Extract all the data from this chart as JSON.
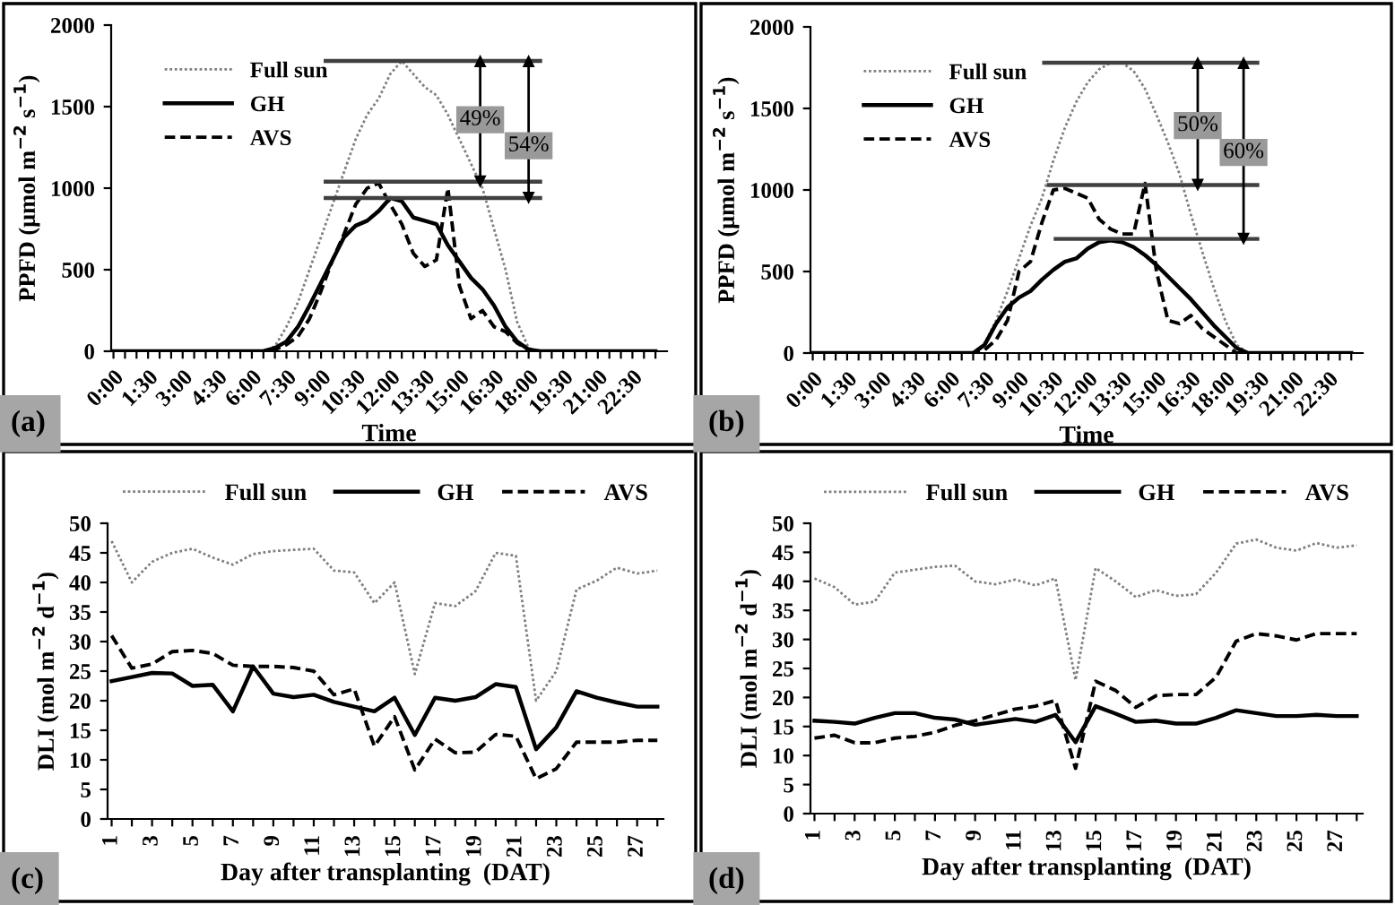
{
  "chart_data": [
    {
      "type": "line",
      "xlabel": "Time",
      "ylabel": "PPFD (μmol m$^{−2}$ s$^{−1}$)",
      "annotations": [
        "(a)",
        {
          "text": "49%",
          "x": 15.9,
          "y": 1420
        },
        {
          "text": "54%",
          "x": 18.0,
          "y": 1260
        }
      ],
      "xlim": [
        -0.1,
        24
      ],
      "ylim": [
        0,
        2000
      ],
      "yticks": [
        0,
        500,
        1000,
        1500,
        2000
      ],
      "xticks": [
        {
          "value": 0,
          "label": "0:00"
        },
        {
          "value": 0.5,
          "label": null
        },
        {
          "value": 1,
          "label": null
        },
        {
          "value": 1.5,
          "label": "1:30"
        },
        {
          "value": 2,
          "label": null
        },
        {
          "value": 2.5,
          "label": null
        },
        {
          "value": 3,
          "label": "3:00"
        },
        {
          "value": 3.5,
          "label": null
        },
        {
          "value": 4,
          "label": null
        },
        {
          "value": 4.5,
          "label": "4:30"
        },
        {
          "value": 5,
          "label": null
        },
        {
          "value": 5.5,
          "label": null
        },
        {
          "value": 6,
          "label": "6:00"
        },
        {
          "value": 6.5,
          "label": null
        },
        {
          "value": 7,
          "label": null
        },
        {
          "value": 7.5,
          "label": "7:30"
        },
        {
          "value": 8,
          "label": null
        },
        {
          "value": 8.5,
          "label": null
        },
        {
          "value": 9,
          "label": "9:00"
        },
        {
          "value": 9.5,
          "label": null
        },
        {
          "value": 10,
          "label": null
        },
        {
          "value": 10.5,
          "label": "10:30"
        },
        {
          "value": 11,
          "label": null
        },
        {
          "value": 11.5,
          "label": null
        },
        {
          "value": 12,
          "label": "12:00"
        },
        {
          "value": 12.5,
          "label": null
        },
        {
          "value": 13,
          "label": null
        },
        {
          "value": 13.5,
          "label": "13:30"
        },
        {
          "value": 14,
          "label": null
        },
        {
          "value": 14.5,
          "label": null
        },
        {
          "value": 15,
          "label": "15:00"
        },
        {
          "value": 15.5,
          "label": null
        },
        {
          "value": 16,
          "label": null
        },
        {
          "value": 16.5,
          "label": "16:30"
        },
        {
          "value": 17,
          "label": null
        },
        {
          "value": 17.5,
          "label": null
        },
        {
          "value": 18,
          "label": "18:00"
        },
        {
          "value": 18.5,
          "label": null
        },
        {
          "value": 19,
          "label": null
        },
        {
          "value": 19.5,
          "label": "19:30"
        },
        {
          "value": 20,
          "label": null
        },
        {
          "value": 20.5,
          "label": null
        },
        {
          "value": 21,
          "label": "21:00"
        },
        {
          "value": 21.5,
          "label": null
        },
        {
          "value": 22,
          "label": null
        },
        {
          "value": 22.5,
          "label": "22:30"
        },
        {
          "value": 23,
          "label": null
        },
        {
          "value": 23.5,
          "label": null
        }
      ],
      "legend": "top left",
      "series": [
        {
          "name": "Full sun",
          "color": "#7f7f7f",
          "line_style": "dotted",
          "x": [
            0,
            6.5,
            7,
            7.5,
            8,
            8.5,
            9,
            9.5,
            10,
            10.5,
            11,
            11.5,
            12,
            12.5,
            13,
            13.5,
            14,
            14.5,
            15,
            15.5,
            16,
            16.5,
            17,
            17.5,
            18,
            18.5,
            23.5
          ],
          "values": [
            0,
            0,
            30,
            150,
            300,
            500,
            700,
            900,
            1100,
            1300,
            1450,
            1550,
            1700,
            1780,
            1700,
            1620,
            1570,
            1450,
            1300,
            1150,
            1000,
            750,
            500,
            180,
            20,
            0,
            0
          ]
        },
        {
          "name": "GH",
          "color": "#000000",
          "line_style": "solid",
          "x": [
            0,
            6.5,
            7,
            7.5,
            8,
            8.5,
            9,
            9.5,
            10,
            10.5,
            11,
            11.5,
            12,
            12.5,
            13,
            13.5,
            14,
            14.5,
            15,
            15.5,
            16,
            16.5,
            17,
            17.5,
            18,
            18.5,
            23.5
          ],
          "values": [
            0,
            0,
            20,
            60,
            150,
            280,
            420,
            560,
            700,
            770,
            800,
            860,
            940,
            920,
            820,
            800,
            780,
            650,
            550,
            450,
            380,
            280,
            150,
            60,
            10,
            0,
            0
          ]
        },
        {
          "name": "AVS",
          "color": "#000000",
          "line_style": "dashed",
          "x": [
            0,
            6.5,
            7,
            7.5,
            8,
            8.5,
            9,
            9.5,
            10,
            10.5,
            11,
            11.5,
            12,
            12.5,
            13,
            13.5,
            14,
            14.5,
            15,
            15.5,
            16,
            16.5,
            17,
            17.5,
            18,
            18.5,
            23.5
          ],
          "values": [
            0,
            0,
            10,
            40,
            90,
            200,
            370,
            560,
            720,
            900,
            1000,
            1030,
            900,
            780,
            600,
            520,
            560,
            1000,
            400,
            200,
            250,
            150,
            120,
            50,
            10,
            0,
            0
          ]
        },
        {
          "color": "#404040",
          "line_style": "solid",
          "x": [
            9.2,
            18.5
          ],
          "values": [
            1780,
            1780
          ]
        },
        {
          "color": "#404040",
          "line_style": "solid",
          "x": [
            9.2,
            18.5
          ],
          "values": [
            1040,
            1040
          ]
        },
        {
          "color": "#404040",
          "line_style": "solid",
          "x": [
            9.2,
            18.5
          ],
          "values": [
            940,
            940
          ]
        },
        {
          "color": "#000000",
          "line_style": "solid",
          "marker": "triangle",
          "x": [
            15.9,
            15.9
          ],
          "values": [
            1780,
            1040
          ]
        },
        {
          "color": "#000000",
          "line_style": "solid",
          "marker": "triangle",
          "x": [
            18.0,
            18.0
          ],
          "values": [
            1780,
            940
          ]
        }
      ]
    },
    {
      "type": "line",
      "xlabel": "Time",
      "ylabel": "PPFD (μmol m$^{−2}$ s$^{−1}$)",
      "annotations": [
        "(b)",
        {
          "text": "50%",
          "x": 16.8,
          "y": 1395
        },
        {
          "text": "60%",
          "x": 18.8,
          "y": 1230
        }
      ],
      "xlim": [
        -0.1,
        24
      ],
      "ylim": [
        0,
        2000
      ],
      "yticks": [
        0,
        500,
        1000,
        1500,
        2000
      ],
      "xticks": [
        {
          "value": 0,
          "label": "0:00"
        },
        {
          "value": 0.5,
          "label": null
        },
        {
          "value": 1,
          "label": null
        },
        {
          "value": 1.5,
          "label": "1:30"
        },
        {
          "value": 2,
          "label": null
        },
        {
          "value": 2.5,
          "label": null
        },
        {
          "value": 3,
          "label": "3:00"
        },
        {
          "value": 3.5,
          "label": null
        },
        {
          "value": 4,
          "label": null
        },
        {
          "value": 4.5,
          "label": "4:30"
        },
        {
          "value": 5,
          "label": null
        },
        {
          "value": 5.5,
          "label": null
        },
        {
          "value": 6,
          "label": "6:00"
        },
        {
          "value": 6.5,
          "label": null
        },
        {
          "value": 7,
          "label": null
        },
        {
          "value": 7.5,
          "label": "7:30"
        },
        {
          "value": 8,
          "label": null
        },
        {
          "value": 8.5,
          "label": null
        },
        {
          "value": 9,
          "label": "9:00"
        },
        {
          "value": 9.5,
          "label": null
        },
        {
          "value": 10,
          "label": null
        },
        {
          "value": 10.5,
          "label": "10:30"
        },
        {
          "value": 11,
          "label": null
        },
        {
          "value": 11.5,
          "label": null
        },
        {
          "value": 12,
          "label": "12:00"
        },
        {
          "value": 12.5,
          "label": null
        },
        {
          "value": 13,
          "label": null
        },
        {
          "value": 13.5,
          "label": "13:30"
        },
        {
          "value": 14,
          "label": null
        },
        {
          "value": 14.5,
          "label": null
        },
        {
          "value": 15,
          "label": "15:00"
        },
        {
          "value": 15.5,
          "label": null
        },
        {
          "value": 16,
          "label": null
        },
        {
          "value": 16.5,
          "label": "16:30"
        },
        {
          "value": 17,
          "label": null
        },
        {
          "value": 17.5,
          "label": null
        },
        {
          "value": 18,
          "label": "18:00"
        },
        {
          "value": 18.5,
          "label": null
        },
        {
          "value": 19,
          "label": null
        },
        {
          "value": 19.5,
          "label": "19:30"
        },
        {
          "value": 20,
          "label": null
        },
        {
          "value": 20.5,
          "label": null
        },
        {
          "value": 21,
          "label": "21:00"
        },
        {
          "value": 21.5,
          "label": null
        },
        {
          "value": 22,
          "label": null
        },
        {
          "value": 22.5,
          "label": "22:30"
        },
        {
          "value": 23,
          "label": null
        },
        {
          "value": 23.5,
          "label": null
        }
      ],
      "legend": "top left",
      "series": [
        {
          "name": "Full sun",
          "color": "#7f7f7f",
          "line_style": "dotted",
          "x": [
            0,
            6.5,
            7,
            7.5,
            8,
            8.5,
            9,
            9.5,
            10,
            10.5,
            11,
            11.5,
            12,
            12.5,
            13,
            13.5,
            14,
            14.5,
            15,
            15.5,
            16,
            16.5,
            17,
            17.5,
            18,
            18.5,
            19,
            23.5
          ],
          "values": [
            0,
            0,
            0,
            60,
            200,
            380,
            580,
            780,
            950,
            1180,
            1380,
            1540,
            1660,
            1740,
            1780,
            1780,
            1730,
            1620,
            1460,
            1290,
            1100,
            850,
            620,
            400,
            200,
            50,
            0,
            0
          ]
        },
        {
          "name": "GH",
          "color": "#000000",
          "line_style": "solid",
          "x": [
            0,
            6.5,
            7,
            7.5,
            8,
            8.5,
            9,
            9.5,
            10,
            10.5,
            11,
            11.5,
            12,
            12.5,
            13,
            13.5,
            14,
            14.5,
            15,
            15.5,
            16,
            16.5,
            17,
            17.5,
            18,
            18.5,
            19,
            23.5
          ],
          "values": [
            0,
            0,
            0,
            50,
            180,
            280,
            340,
            380,
            450,
            510,
            560,
            580,
            640,
            680,
            690,
            680,
            650,
            600,
            540,
            470,
            400,
            330,
            250,
            170,
            100,
            30,
            0,
            0
          ]
        },
        {
          "name": "AVS",
          "color": "#000000",
          "line_style": "dashed",
          "x": [
            0,
            6.5,
            7,
            7.5,
            8,
            8.5,
            9,
            9.5,
            10,
            10.5,
            11,
            11.5,
            12,
            12.5,
            13,
            13.5,
            14,
            14.5,
            15,
            15.5,
            16,
            16.5,
            17,
            17.5,
            18,
            18.5,
            19,
            23.5
          ],
          "values": [
            0,
            0,
            0,
            20,
            80,
            200,
            500,
            560,
            800,
            1000,
            1010,
            980,
            950,
            820,
            760,
            730,
            730,
            1040,
            500,
            200,
            180,
            230,
            150,
            100,
            50,
            0,
            0,
            0
          ]
        },
        {
          "color": "#404040",
          "line_style": "solid",
          "x": [
            10.1,
            19.4
          ],
          "values": [
            1780,
            1780
          ]
        },
        {
          "color": "#404040",
          "line_style": "solid",
          "x": [
            10.3,
            19.4
          ],
          "values": [
            1030,
            1030
          ]
        },
        {
          "color": "#404040",
          "line_style": "solid",
          "x": [
            10.6,
            19.4
          ],
          "values": [
            700,
            700
          ]
        },
        {
          "color": "#000000",
          "line_style": "solid",
          "marker": "triangle",
          "x": [
            16.8,
            16.8
          ],
          "values": [
            1780,
            1030
          ]
        },
        {
          "color": "#000000",
          "line_style": "solid",
          "marker": "triangle",
          "x": [
            18.8,
            18.8
          ],
          "values": [
            1780,
            700
          ]
        }
      ]
    },
    {
      "type": "line",
      "xlabel": "Day after transplanting  (DAT)",
      "ylabel": "DLI (mol m$^{−2}$ d$^{−1}$)",
      "annotations": [
        "(c)"
      ],
      "xlim": [
        0.8,
        28.3
      ],
      "ylim": [
        0,
        50
      ],
      "yticks": [
        0,
        5,
        10,
        15,
        20,
        25,
        30,
        35,
        40,
        45,
        50
      ],
      "xticks": [
        1,
        {
          "value": 2,
          "label": null
        },
        3,
        {
          "value": 4,
          "label": null
        },
        5,
        {
          "value": 6,
          "label": null
        },
        7,
        {
          "value": 8,
          "label": null
        },
        9,
        {
          "value": 10,
          "label": null
        },
        11,
        {
          "value": 12,
          "label": null
        },
        13,
        {
          "value": 14,
          "label": null
        },
        15,
        {
          "value": 16,
          "label": null
        },
        17,
        {
          "value": 18,
          "label": null
        },
        19,
        {
          "value": 20,
          "label": null
        },
        21,
        {
          "value": 22,
          "label": null
        },
        23,
        {
          "value": 24,
          "label": null
        },
        25,
        {
          "value": 26,
          "label": null
        },
        27,
        {
          "value": 28,
          "label": null
        }
      ],
      "x": [
        1,
        2,
        3,
        4,
        5,
        6,
        7,
        8,
        9,
        10,
        11,
        12,
        13,
        14,
        15,
        16,
        17,
        18,
        19,
        20,
        21,
        22,
        23,
        24,
        25,
        26,
        27,
        28
      ],
      "legend": "top",
      "series": [
        {
          "name": "Full sun",
          "color": "#7f7f7f",
          "line_style": "dotted",
          "values": [
            47,
            40,
            43.5,
            45,
            45.7,
            44.2,
            43,
            44.8,
            45.3,
            45.5,
            45.7,
            42,
            41.7,
            36.5,
            40,
            24.5,
            36.5,
            36,
            38.5,
            45,
            44.5,
            20,
            25,
            38.8,
            40.3,
            42.5,
            41.5,
            42
          ]
        },
        {
          "name": "GH",
          "color": "#000000",
          "line_style": "solid",
          "values": [
            23.3,
            24,
            24.7,
            24.6,
            22.5,
            22.7,
            18.2,
            25.8,
            21.2,
            20.6,
            21,
            19.8,
            19,
            18.2,
            20.5,
            14.2,
            20.5,
            20,
            20.6,
            22.8,
            22.3,
            11.8,
            15.5,
            21.6,
            20.5,
            19.7,
            19,
            19
          ]
        },
        {
          "name": "AVS",
          "color": "#000000",
          "line_style": "dashed",
          "values": [
            31,
            25.5,
            26.2,
            28.3,
            28.5,
            28,
            26,
            25.8,
            25.8,
            25.6,
            25,
            21,
            22,
            12.3,
            17.3,
            8.3,
            13.5,
            11.2,
            11.3,
            14.3,
            14,
            6.8,
            8.5,
            13,
            13,
            13,
            13.3,
            13.3
          ]
        }
      ]
    },
    {
      "type": "line",
      "xlabel": "Day after transplanting  (DAT)",
      "ylabel": "DLI (mol m$^{−2}$ d$^{−1}$)",
      "annotations": [
        "(d)"
      ],
      "xlim": [
        0.8,
        28.3
      ],
      "ylim": [
        0,
        50
      ],
      "yticks": [
        0,
        5,
        10,
        15,
        20,
        25,
        30,
        35,
        40,
        45,
        50
      ],
      "xticks": [
        1,
        {
          "value": 2,
          "label": null
        },
        3,
        {
          "value": 4,
          "label": null
        },
        5,
        {
          "value": 6,
          "label": null
        },
        7,
        {
          "value": 8,
          "label": null
        },
        9,
        {
          "value": 10,
          "label": null
        },
        11,
        {
          "value": 12,
          "label": null
        },
        13,
        {
          "value": 14,
          "label": null
        },
        15,
        {
          "value": 16,
          "label": null
        },
        17,
        {
          "value": 18,
          "label": null
        },
        19,
        {
          "value": 20,
          "label": null
        },
        21,
        {
          "value": 22,
          "label": null
        },
        23,
        {
          "value": 24,
          "label": null
        },
        25,
        {
          "value": 26,
          "label": null
        },
        27,
        {
          "value": 28,
          "label": null
        }
      ],
      "x": [
        1,
        2,
        3,
        4,
        5,
        6,
        7,
        8,
        9,
        10,
        11,
        12,
        13,
        14,
        15,
        16,
        17,
        18,
        19,
        20,
        21,
        22,
        23,
        24,
        25,
        26,
        27,
        28
      ],
      "legend": "top",
      "series": [
        {
          "name": "Full sun",
          "color": "#7f7f7f",
          "line_style": "dotted",
          "values": [
            40.5,
            39,
            36,
            36.5,
            41.5,
            42,
            42.5,
            42.7,
            40,
            39.5,
            40.3,
            39.3,
            40.5,
            23,
            42.3,
            40,
            37.3,
            38.5,
            37.5,
            37.8,
            41.5,
            46.5,
            47.2,
            45.8,
            45.3,
            46.6,
            45.8,
            46.2
          ]
        },
        {
          "name": "GH",
          "color": "#000000",
          "line_style": "solid",
          "values": [
            16,
            15.8,
            15.5,
            16.5,
            17.3,
            17.3,
            16.5,
            16.2,
            15.3,
            15.8,
            16.3,
            15.8,
            17,
            12.3,
            18.5,
            17.2,
            15.8,
            16,
            15.5,
            15.5,
            16.5,
            17.8,
            17.3,
            16.8,
            16.8,
            17,
            16.8,
            16.8
          ]
        },
        {
          "name": "AVS",
          "color": "#000000",
          "line_style": "dashed",
          "values": [
            13,
            13.5,
            12.2,
            12.2,
            13,
            13.3,
            14,
            15.2,
            16,
            17,
            18,
            18.5,
            19.5,
            7.8,
            22.8,
            21.2,
            18.3,
            20.3,
            20.5,
            20.5,
            23.5,
            29.7,
            31,
            30.6,
            29.9,
            31,
            31,
            31
          ]
        }
      ]
    }
  ]
}
